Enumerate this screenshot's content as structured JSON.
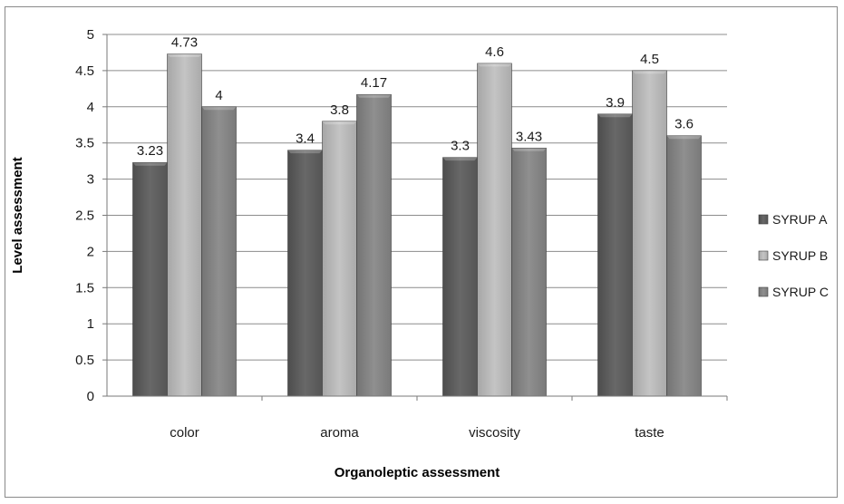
{
  "chart_data": {
    "type": "bar",
    "title": "",
    "xlabel": "Organoleptic assessment",
    "ylabel": "Level  assessment",
    "categories": [
      "color",
      "aroma",
      "viscosity",
      "taste"
    ],
    "series": [
      {
        "name": "SYRUP A",
        "values": [
          3.23,
          3.4,
          3.3,
          3.9
        ],
        "labels": [
          "3.23",
          "3.4",
          "3.3",
          "3.9"
        ],
        "color": "#5f5f5f"
      },
      {
        "name": "SYRUP  B",
        "values": [
          4.73,
          3.8,
          4.6,
          4.5
        ],
        "labels": [
          "4.73",
          "3.8",
          "4.6",
          "4.5"
        ],
        "color": "#b4b4b4"
      },
      {
        "name": "SYRUP C",
        "values": [
          4.0,
          4.17,
          3.43,
          3.6
        ],
        "labels": [
          "4",
          "4.17",
          "3.43",
          "3.6"
        ],
        "color": "#858585"
      }
    ],
    "ylim": [
      0,
      5
    ],
    "yticks": [
      "0",
      "0.5",
      "1",
      "1.5",
      "2",
      "2.5",
      "3",
      "3.5",
      "4",
      "4.5",
      "5"
    ],
    "grid": true,
    "legend": "right"
  }
}
